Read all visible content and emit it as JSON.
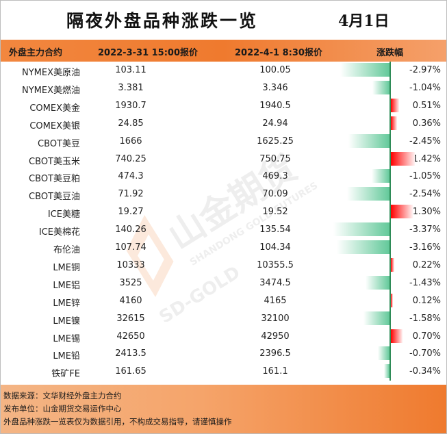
{
  "title": "隔夜外盘品种涨跌一览",
  "date": "4月1日",
  "header": {
    "col_name": "外盘主力合约",
    "col_price1": "2022-3-31 15:00报价",
    "col_price2": "2022-4-1 8:30报价",
    "col_change": "涨跌幅"
  },
  "watermark": {
    "brand_cn": "山金期货",
    "brand_en": "SHANDONG GOLD FUTURES",
    "brand_code": "SD-GOLD"
  },
  "colors": {
    "up": "#ff0000",
    "down": "#63c99a",
    "header": "#ef7a2e"
  },
  "chart_data": {
    "type": "table",
    "columns": [
      "外盘主力合约",
      "2022-3-31 15:00报价",
      "2022-4-1 8:30报价",
      "涨跌幅"
    ],
    "rows": [
      {
        "name": "NYMEX美原油",
        "p1": "103.11",
        "p2": "100.05",
        "chg": "-2.97%",
        "value": -2.97
      },
      {
        "name": "NYMEX美燃油",
        "p1": "3.381",
        "p2": "3.346",
        "chg": "-1.04%",
        "value": -1.04
      },
      {
        "name": "COMEX美金",
        "p1": "1930.7",
        "p2": "1940.5",
        "chg": "0.51%",
        "value": 0.51
      },
      {
        "name": "COMEX美银",
        "p1": "24.85",
        "p2": "24.94",
        "chg": "0.36%",
        "value": 0.36
      },
      {
        "name": "CBOT美豆",
        "p1": "1666",
        "p2": "1625.25",
        "chg": "-2.45%",
        "value": -2.45
      },
      {
        "name": "CBOT美玉米",
        "p1": "740.25",
        "p2": "750.75",
        "chg": "1.42%",
        "value": 1.42
      },
      {
        "name": "CBOT美豆粕",
        "p1": "474.3",
        "p2": "469.3",
        "chg": "-1.05%",
        "value": -1.05
      },
      {
        "name": "CBOT美豆油",
        "p1": "71.92",
        "p2": "70.09",
        "chg": "-2.54%",
        "value": -2.54
      },
      {
        "name": "ICE美糖",
        "p1": "19.27",
        "p2": "19.52",
        "chg": "1.30%",
        "value": 1.3
      },
      {
        "name": "ICE美棉花",
        "p1": "140.26",
        "p2": "135.54",
        "chg": "-3.37%",
        "value": -3.37
      },
      {
        "name": "布伦油",
        "p1": "107.74",
        "p2": "104.34",
        "chg": "-3.16%",
        "value": -3.16
      },
      {
        "name": "LME铜",
        "p1": "10333",
        "p2": "10355.5",
        "chg": "0.22%",
        "value": 0.22
      },
      {
        "name": "LME铝",
        "p1": "3525",
        "p2": "3474.5",
        "chg": "-1.43%",
        "value": -1.43
      },
      {
        "name": "LME锌",
        "p1": "4160",
        "p2": "4165",
        "chg": "0.12%",
        "value": 0.12
      },
      {
        "name": "LME镍",
        "p1": "32615",
        "p2": "32100",
        "chg": "-1.58%",
        "value": -1.58
      },
      {
        "name": "LME锡",
        "p1": "42650",
        "p2": "42950",
        "chg": "0.70%",
        "value": 0.7
      },
      {
        "name": "LME铅",
        "p1": "2413.5",
        "p2": "2396.5",
        "chg": "-0.70%",
        "value": -0.7
      },
      {
        "name": "铁矿FE",
        "p1": "161.65",
        "p2": "161.1",
        "chg": "-0.34%",
        "value": -0.34
      }
    ]
  },
  "footer": {
    "source": "数据来源：文华财经外盘主力合约",
    "publisher": "发布单位：山金期货交易运作中心",
    "disclaimer": "外盘品种涨跌一览表仅为数据引用，不构成交易指导，请谨慎操作"
  }
}
